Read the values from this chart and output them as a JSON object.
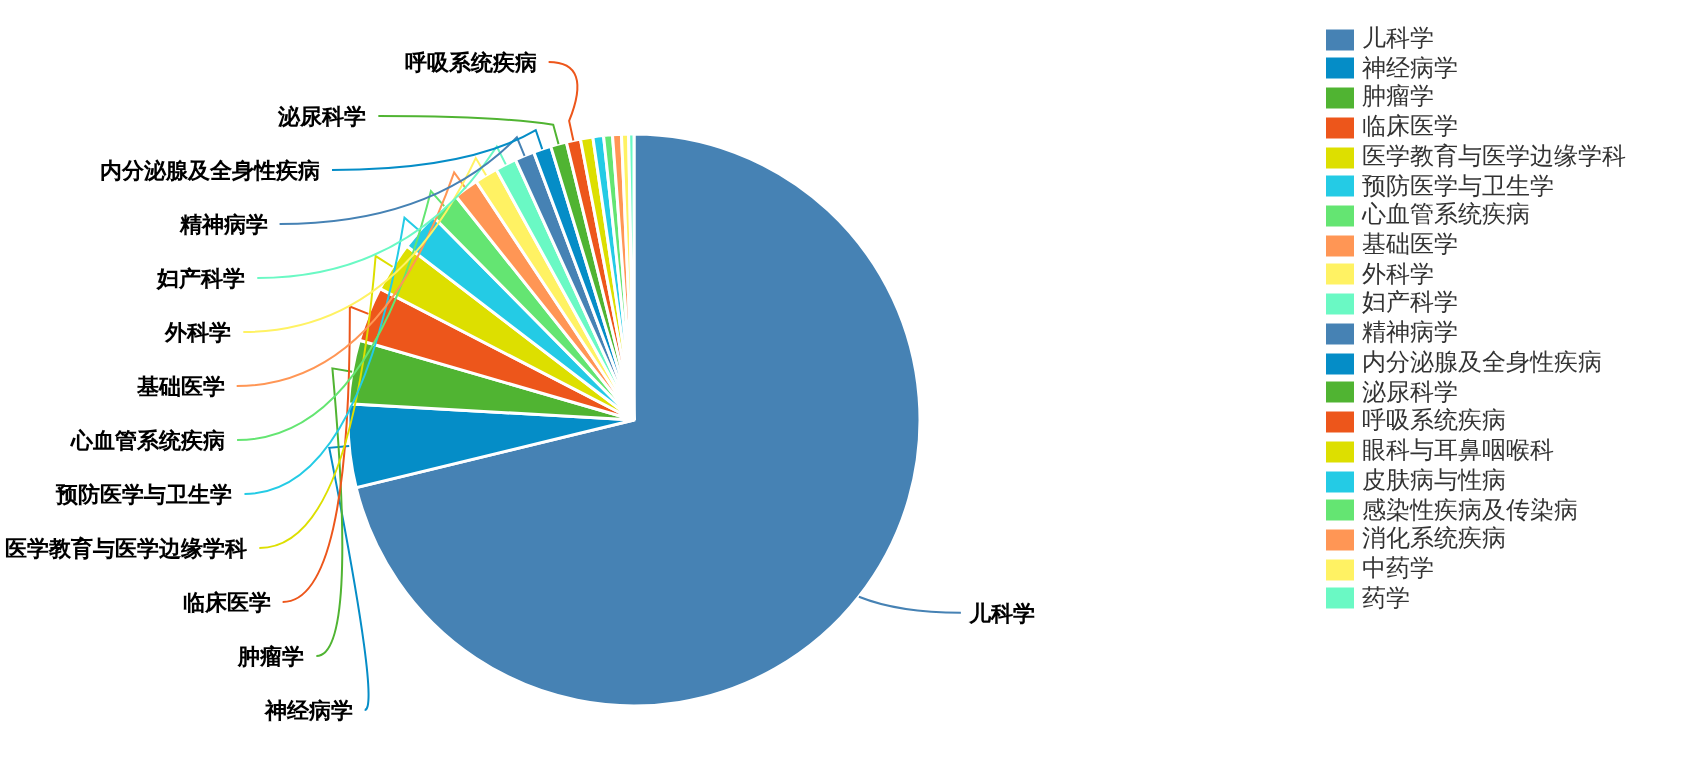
{
  "chart_data": {
    "type": "pie",
    "categories": [
      "儿科学",
      "神经病学",
      "肿瘤学",
      "临床医学",
      "医学教育与医学边缘学科",
      "预防医学与卫生学",
      "心血管系统疾病",
      "基础医学",
      "外科学",
      "妇产科学",
      "精神病学",
      "内分泌腺及全身性疾病",
      "泌尿科学",
      "呼吸系统疾病",
      "眼科与耳鼻咽喉科",
      "皮肤病与性病",
      "感染性疾病及传染病",
      "消化系统疾病",
      "中药学",
      "药学"
    ],
    "values": [
      71.2,
      4.7,
      3.6,
      3.1,
      2.8,
      2.2,
      1.7,
      1.4,
      1.3,
      1.2,
      1.1,
      1.0,
      0.9,
      0.8,
      0.7,
      0.6,
      0.5,
      0.5,
      0.4,
      0.3
    ],
    "colors": [
      "#4682b4",
      "#058dc7",
      "#50b432",
      "#ed561b",
      "#dddf00",
      "#24cbe5",
      "#64e572",
      "#ff9655",
      "#fff263",
      "#6af9c4",
      "#4682b4",
      "#058dc7",
      "#50b432",
      "#ed561b",
      "#dddf00",
      "#24cbe5",
      "#64e572",
      "#ff9655",
      "#fff263",
      "#6af9c4"
    ],
    "value_labels": [
      "儿科学",
      "神经病学",
      "肿瘤学",
      "临床医学",
      "医学教育与医学边缘学科",
      "预防医学与卫生学",
      "心血管系统疾病",
      "基础医学",
      "外科学",
      "妇产科学",
      "精神病学",
      "内分泌腺及全身性疾病",
      "泌尿科学",
      "呼吸系统疾病",
      null,
      null,
      null,
      null,
      null,
      null
    ],
    "legend": "top right"
  }
}
